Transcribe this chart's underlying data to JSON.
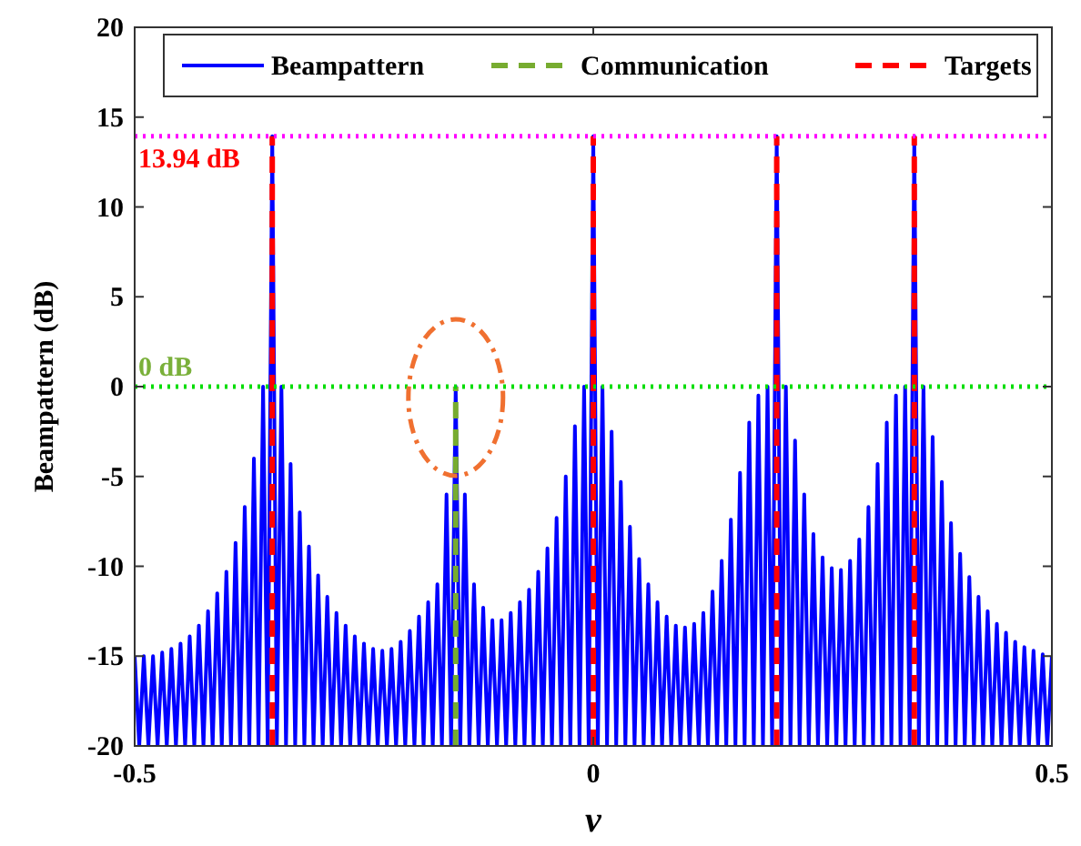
{
  "chart_data": {
    "type": "line",
    "xlabel": "v",
    "ylabel": "Beampattern (dB)",
    "xlim": [
      -0.5,
      0.5
    ],
    "xticks": [
      -0.5,
      0,
      0.5
    ],
    "ylim": [
      -20,
      20
    ],
    "yticks": [
      -20,
      -15,
      -10,
      -5,
      0,
      5,
      10,
      15,
      20
    ],
    "grid": false,
    "legend": "top",
    "x": [
      -0.5,
      -0.495,
      -0.49,
      -0.485,
      -0.48,
      -0.475,
      -0.47,
      -0.465,
      -0.46,
      -0.455,
      -0.45,
      -0.445,
      -0.44,
      -0.435,
      -0.43,
      -0.425,
      -0.42,
      -0.415,
      -0.41,
      -0.405,
      -0.4,
      -0.395,
      -0.39,
      -0.385,
      -0.38,
      -0.375,
      -0.37,
      -0.365,
      -0.36,
      -0.355,
      -0.35,
      -0.345,
      -0.34,
      -0.335,
      -0.33,
      -0.325,
      -0.32,
      -0.315,
      -0.31,
      -0.305,
      -0.3,
      -0.295,
      -0.29,
      -0.285,
      -0.28,
      -0.275,
      -0.27,
      -0.265,
      -0.26,
      -0.255,
      -0.25,
      -0.245,
      -0.24,
      -0.235,
      -0.23,
      -0.225,
      -0.22,
      -0.215,
      -0.21,
      -0.205,
      -0.2,
      -0.195,
      -0.19,
      -0.185,
      -0.18,
      -0.175,
      -0.17,
      -0.165,
      -0.16,
      -0.155,
      -0.15,
      -0.145,
      -0.14,
      -0.135,
      -0.13,
      -0.125,
      -0.12,
      -0.115,
      -0.11,
      -0.105,
      -0.1,
      -0.095,
      -0.09,
      -0.085,
      -0.08,
      -0.075,
      -0.07,
      -0.065,
      -0.06,
      -0.055,
      -0.05,
      -0.045,
      -0.04,
      -0.035,
      -0.03,
      -0.025,
      -0.02,
      -0.015,
      -0.01,
      -0.005,
      0,
      0.005,
      0.01,
      0.015,
      0.02,
      0.025,
      0.03,
      0.035,
      0.04,
      0.045,
      0.05,
      0.055,
      0.06,
      0.065,
      0.07,
      0.075,
      0.08,
      0.085,
      0.09,
      0.095,
      0.1,
      0.105,
      0.11,
      0.115,
      0.12,
      0.125,
      0.13,
      0.135,
      0.14,
      0.145,
      0.15,
      0.155,
      0.16,
      0.165,
      0.17,
      0.175,
      0.18,
      0.185,
      0.19,
      0.195,
      0.2,
      0.205,
      0.21,
      0.215,
      0.22,
      0.225,
      0.23,
      0.235,
      0.24,
      0.245,
      0.25,
      0.255,
      0.26,
      0.265,
      0.27,
      0.275,
      0.28,
      0.285,
      0.29,
      0.295,
      0.3,
      0.305,
      0.31,
      0.315,
      0.32,
      0.325,
      0.33,
      0.335,
      0.34,
      0.345,
      0.35,
      0.355,
      0.36,
      0.365,
      0.37,
      0.375,
      0.38,
      0.385,
      0.39,
      0.395,
      0.4,
      0.405,
      0.41,
      0.415,
      0.42,
      0.425,
      0.43,
      0.435,
      0.44,
      0.445,
      0.45,
      0.455,
      0.46,
      0.465,
      0.47,
      0.475,
      0.48,
      0.485,
      0.49,
      0.495,
      0.5
    ],
    "series": [
      {
        "name": "Beampattern",
        "color": "#0000ff",
        "line_style": "solid",
        "values": [
          -15,
          -20,
          -15,
          -20,
          -15,
          -20,
          -14.8,
          -20,
          -14.6,
          -20,
          -14.3,
          -20,
          -13.9,
          -20,
          -13.3,
          -20,
          -12.5,
          -20,
          -11.5,
          -20,
          -10.3,
          -20,
          -8.7,
          -20,
          -6.7,
          -20,
          -4,
          -20,
          0,
          -20,
          13.94,
          -20,
          0,
          -20,
          -4.3,
          -20,
          -7,
          -20,
          -8.9,
          -20,
          -10.5,
          -20,
          -11.7,
          -20,
          -12.6,
          -20,
          -13.3,
          -20,
          -13.9,
          -20,
          -14.3,
          -20,
          -14.6,
          -20,
          -14.7,
          -20,
          -14.6,
          -20,
          -14.2,
          -20,
          -13.6,
          -20,
          -12.8,
          -20,
          -12,
          -20,
          -11,
          -20,
          -6,
          -20,
          0,
          -20,
          -6,
          -20,
          -11,
          -20,
          -12.3,
          -20,
          -13,
          -20,
          -13,
          -20,
          -12.6,
          -20,
          -12,
          -20,
          -11.3,
          -20,
          -10.3,
          -20,
          -9,
          -20,
          -7.3,
          -20,
          -5,
          -20,
          -2.2,
          -20,
          0,
          -20,
          13.94,
          -20,
          0,
          -20,
          -2.5,
          -20,
          -5.3,
          -20,
          -7.8,
          -20,
          -9.6,
          -20,
          -11,
          -20,
          -12,
          -20,
          -12.8,
          -20,
          -13.3,
          -20,
          -13.4,
          -20,
          -13.2,
          -20,
          -12.6,
          -20,
          -11.4,
          -20,
          -9.7,
          -20,
          -7.4,
          -20,
          -4.8,
          -20,
          -2,
          -20,
          -0.5,
          -20,
          0,
          -20,
          13.94,
          -20,
          0,
          -20,
          -3,
          -20,
          -6,
          -20,
          -8.2,
          -20,
          -9.5,
          -20,
          -10.1,
          -20,
          -10.2,
          -20,
          -9.7,
          -20,
          -8.5,
          -20,
          -6.7,
          -20,
          -4.3,
          -20,
          -2,
          -20,
          -0.5,
          -20,
          0,
          -20,
          13.94,
          -20,
          0,
          -20,
          -2.8,
          -20,
          -5.3,
          -20,
          -7.6,
          -20,
          -9.3,
          -20,
          -10.6,
          -20,
          -11.7,
          -20,
          -12.5,
          -20,
          -13.2,
          -20,
          -13.7,
          -20,
          -14.2,
          -20,
          -14.5,
          -20,
          -14.7,
          -20,
          -14.9,
          -20,
          -15
        ]
      },
      {
        "name": "Communication",
        "color": "#77ac30",
        "line_style": "dashed",
        "x": [
          -0.15,
          -0.15
        ],
        "values": [
          -20,
          0
        ]
      },
      {
        "name": "Targets",
        "color": "#ff0000",
        "line_style": "dashed",
        "x": [
          -0.35,
          -0.35,
          null,
          0,
          0,
          null,
          0.2,
          0.2,
          null,
          0.35,
          0.35
        ],
        "values": [
          -20,
          13.94,
          null,
          -20,
          13.94,
          null,
          -20,
          13.94,
          null,
          -20,
          13.94
        ]
      }
    ],
    "ref_lines": [
      {
        "axis": "y",
        "value": 13.94,
        "label": "13.94 dB",
        "color": "#ff00ff",
        "line_style": "dotted"
      },
      {
        "axis": "y",
        "value": 0,
        "label": "0 dB",
        "color": "#00dd00",
        "line_style": "dotted"
      }
    ]
  }
}
